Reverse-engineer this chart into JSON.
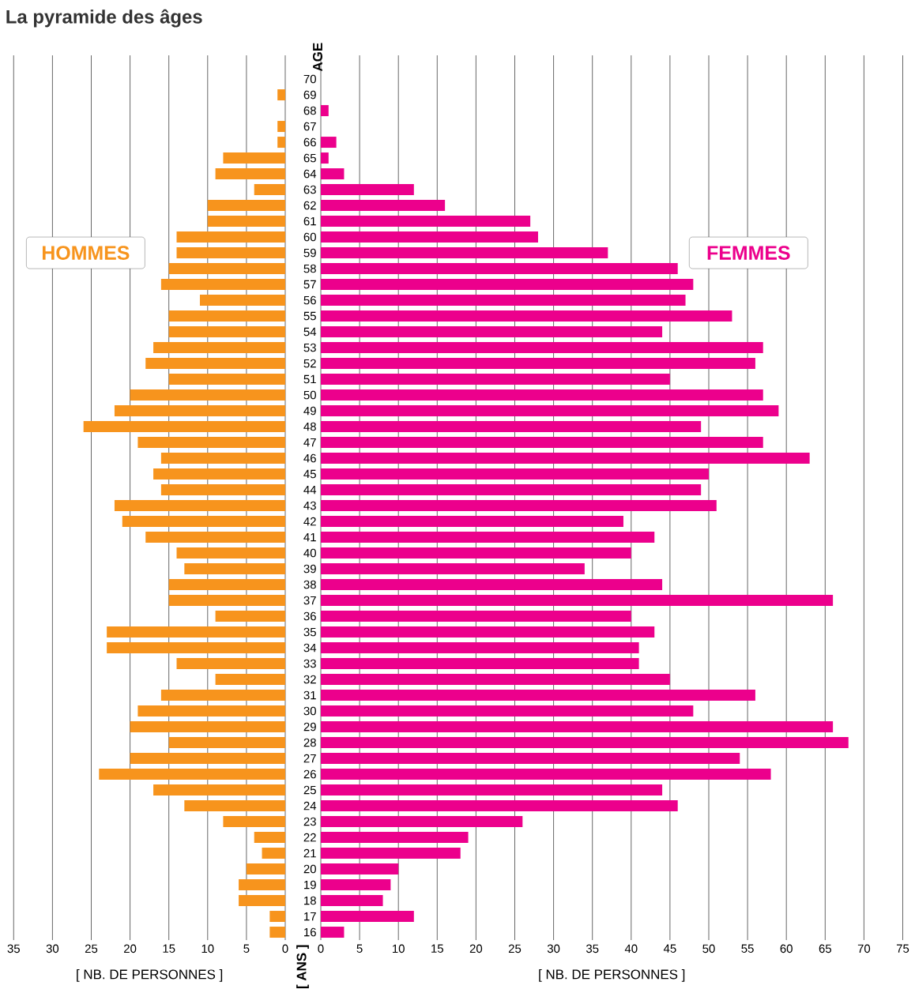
{
  "chart_data": [
    {
      "type": "bar",
      "orientation": "horizontal",
      "title": "La pyramide des âges",
      "xlabel": "[ NB. DE PERSONNES ]",
      "categories": [
        "70",
        "69",
        "68",
        "67",
        "66",
        "65",
        "64",
        "63",
        "62",
        "61",
        "60",
        "59",
        "58",
        "57",
        "56",
        "55",
        "54",
        "53",
        "52",
        "51",
        "50",
        "49",
        "48",
        "47",
        "46",
        "45",
        "44",
        "43",
        "42",
        "41",
        "40",
        "39",
        "38",
        "37",
        "36",
        "35",
        "34",
        "33",
        "32",
        "31",
        "30",
        "29",
        "28",
        "27",
        "26",
        "25",
        "24",
        "23",
        "22",
        "21",
        "20",
        "19",
        "18",
        "17",
        "16"
      ],
      "series": [
        {
          "name": "HOMMES",
          "color": "#f7941d",
          "values": [
            null,
            1,
            null,
            1,
            1,
            8,
            9,
            4,
            10,
            10,
            14,
            14,
            15,
            16,
            11,
            15,
            15,
            17,
            18,
            15,
            20,
            22,
            26,
            19,
            16,
            17,
            16,
            22,
            21,
            18,
            14,
            13,
            15,
            15,
            9,
            23,
            23,
            14,
            9,
            16,
            19,
            20,
            15,
            20,
            24,
            17,
            13,
            8,
            4,
            3,
            5,
            6,
            6,
            2,
            2
          ]
        }
      ],
      "xlim": [
        35,
        0
      ],
      "xticks": [
        35,
        30,
        25,
        20,
        15,
        10,
        5,
        0
      ],
      "grid": "x",
      "tick_labels": "x"
    },
    {
      "type": "bar",
      "orientation": "horizontal",
      "xlabel": "[ NB. DE PERSONNES ]",
      "ylabel": "AGE",
      "annotations": [
        "[ ANS ]"
      ],
      "categories": [
        "70",
        "69",
        "68",
        "67",
        "66",
        "65",
        "64",
        "63",
        "62",
        "61",
        "60",
        "59",
        "58",
        "57",
        "56",
        "55",
        "54",
        "53",
        "52",
        "51",
        "50",
        "49",
        "48",
        "47",
        "46",
        "45",
        "44",
        "43",
        "42",
        "41",
        "40",
        "39",
        "38",
        "37",
        "36",
        "35",
        "34",
        "33",
        "32",
        "31",
        "30",
        "29",
        "28",
        "27",
        "26",
        "25",
        "24",
        "23",
        "22",
        "21",
        "20",
        "19",
        "18",
        "17",
        "16"
      ],
      "series": [
        {
          "name": "FEMMES",
          "color": "#ec008c",
          "values": [
            null,
            null,
            1,
            null,
            2,
            1,
            3,
            12,
            16,
            27,
            28,
            37,
            46,
            48,
            47,
            53,
            44,
            57,
            56,
            45,
            57,
            59,
            49,
            57,
            63,
            50,
            49,
            51,
            39,
            43,
            40,
            34,
            44,
            66,
            40,
            43,
            41,
            41,
            45,
            56,
            48,
            66,
            68,
            54,
            58,
            44,
            46,
            26,
            19,
            18,
            10,
            9,
            8,
            12,
            3
          ]
        }
      ],
      "xlim": [
        0,
        75
      ],
      "xticks": [
        0,
        5,
        10,
        15,
        20,
        25,
        30,
        35,
        40,
        45,
        50,
        55,
        60,
        65,
        70,
        75
      ],
      "grid": "x"
    }
  ]
}
